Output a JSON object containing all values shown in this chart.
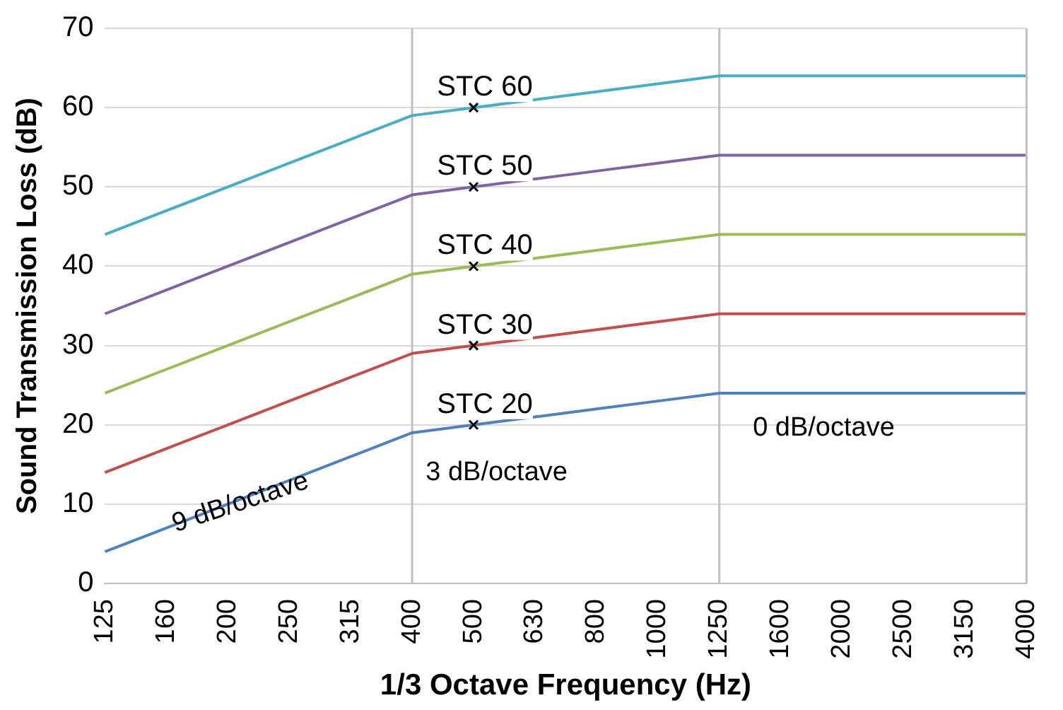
{
  "chart_data": {
    "type": "line",
    "xlabel": "1/3 Octave Frequency (Hz)",
    "ylabel": "Sound Transmission Loss (dB)",
    "categories": [
      "125",
      "160",
      "200",
      "250",
      "315",
      "400",
      "500",
      "630",
      "800",
      "1000",
      "1250",
      "1600",
      "2000",
      "2500",
      "3150",
      "4000"
    ],
    "ylim": [
      0,
      70
    ],
    "yticks": [
      0,
      10,
      20,
      30,
      40,
      50,
      60,
      70
    ],
    "grid": "y",
    "legend": false,
    "marker": "none",
    "series": [
      {
        "name": "STC 60",
        "color": "#4bacc6",
        "values": [
          44,
          47,
          50,
          53,
          56,
          59,
          60,
          61,
          62,
          63,
          64,
          64,
          64,
          64,
          64,
          64
        ]
      },
      {
        "name": "STC 50",
        "color": "#8064a2",
        "values": [
          34,
          37,
          40,
          43,
          46,
          49,
          50,
          51,
          52,
          53,
          54,
          54,
          54,
          54,
          54,
          54
        ]
      },
      {
        "name": "STC 40",
        "color": "#9bbb59",
        "values": [
          24,
          27,
          30,
          33,
          36,
          39,
          40,
          41,
          42,
          43,
          44,
          44,
          44,
          44,
          44,
          44
        ]
      },
      {
        "name": "STC 30",
        "color": "#c0504d",
        "values": [
          14,
          17,
          20,
          23,
          26,
          29,
          30,
          31,
          32,
          33,
          34,
          34,
          34,
          34,
          34,
          34
        ]
      },
      {
        "name": "STC 20",
        "color": "#4f81bd",
        "values": [
          4,
          7,
          10,
          13,
          16,
          19,
          20,
          21,
          22,
          23,
          24,
          24,
          24,
          24,
          24,
          24
        ]
      }
    ],
    "ref_lines": [
      {
        "axis": "x",
        "value": "400",
        "color": "#bfbfbf"
      },
      {
        "axis": "x",
        "value": "1250",
        "color": "#bfbfbf"
      }
    ],
    "annotations": [
      "9 dB/octave",
      "3 dB/octave",
      "0 dB/octave"
    ]
  }
}
